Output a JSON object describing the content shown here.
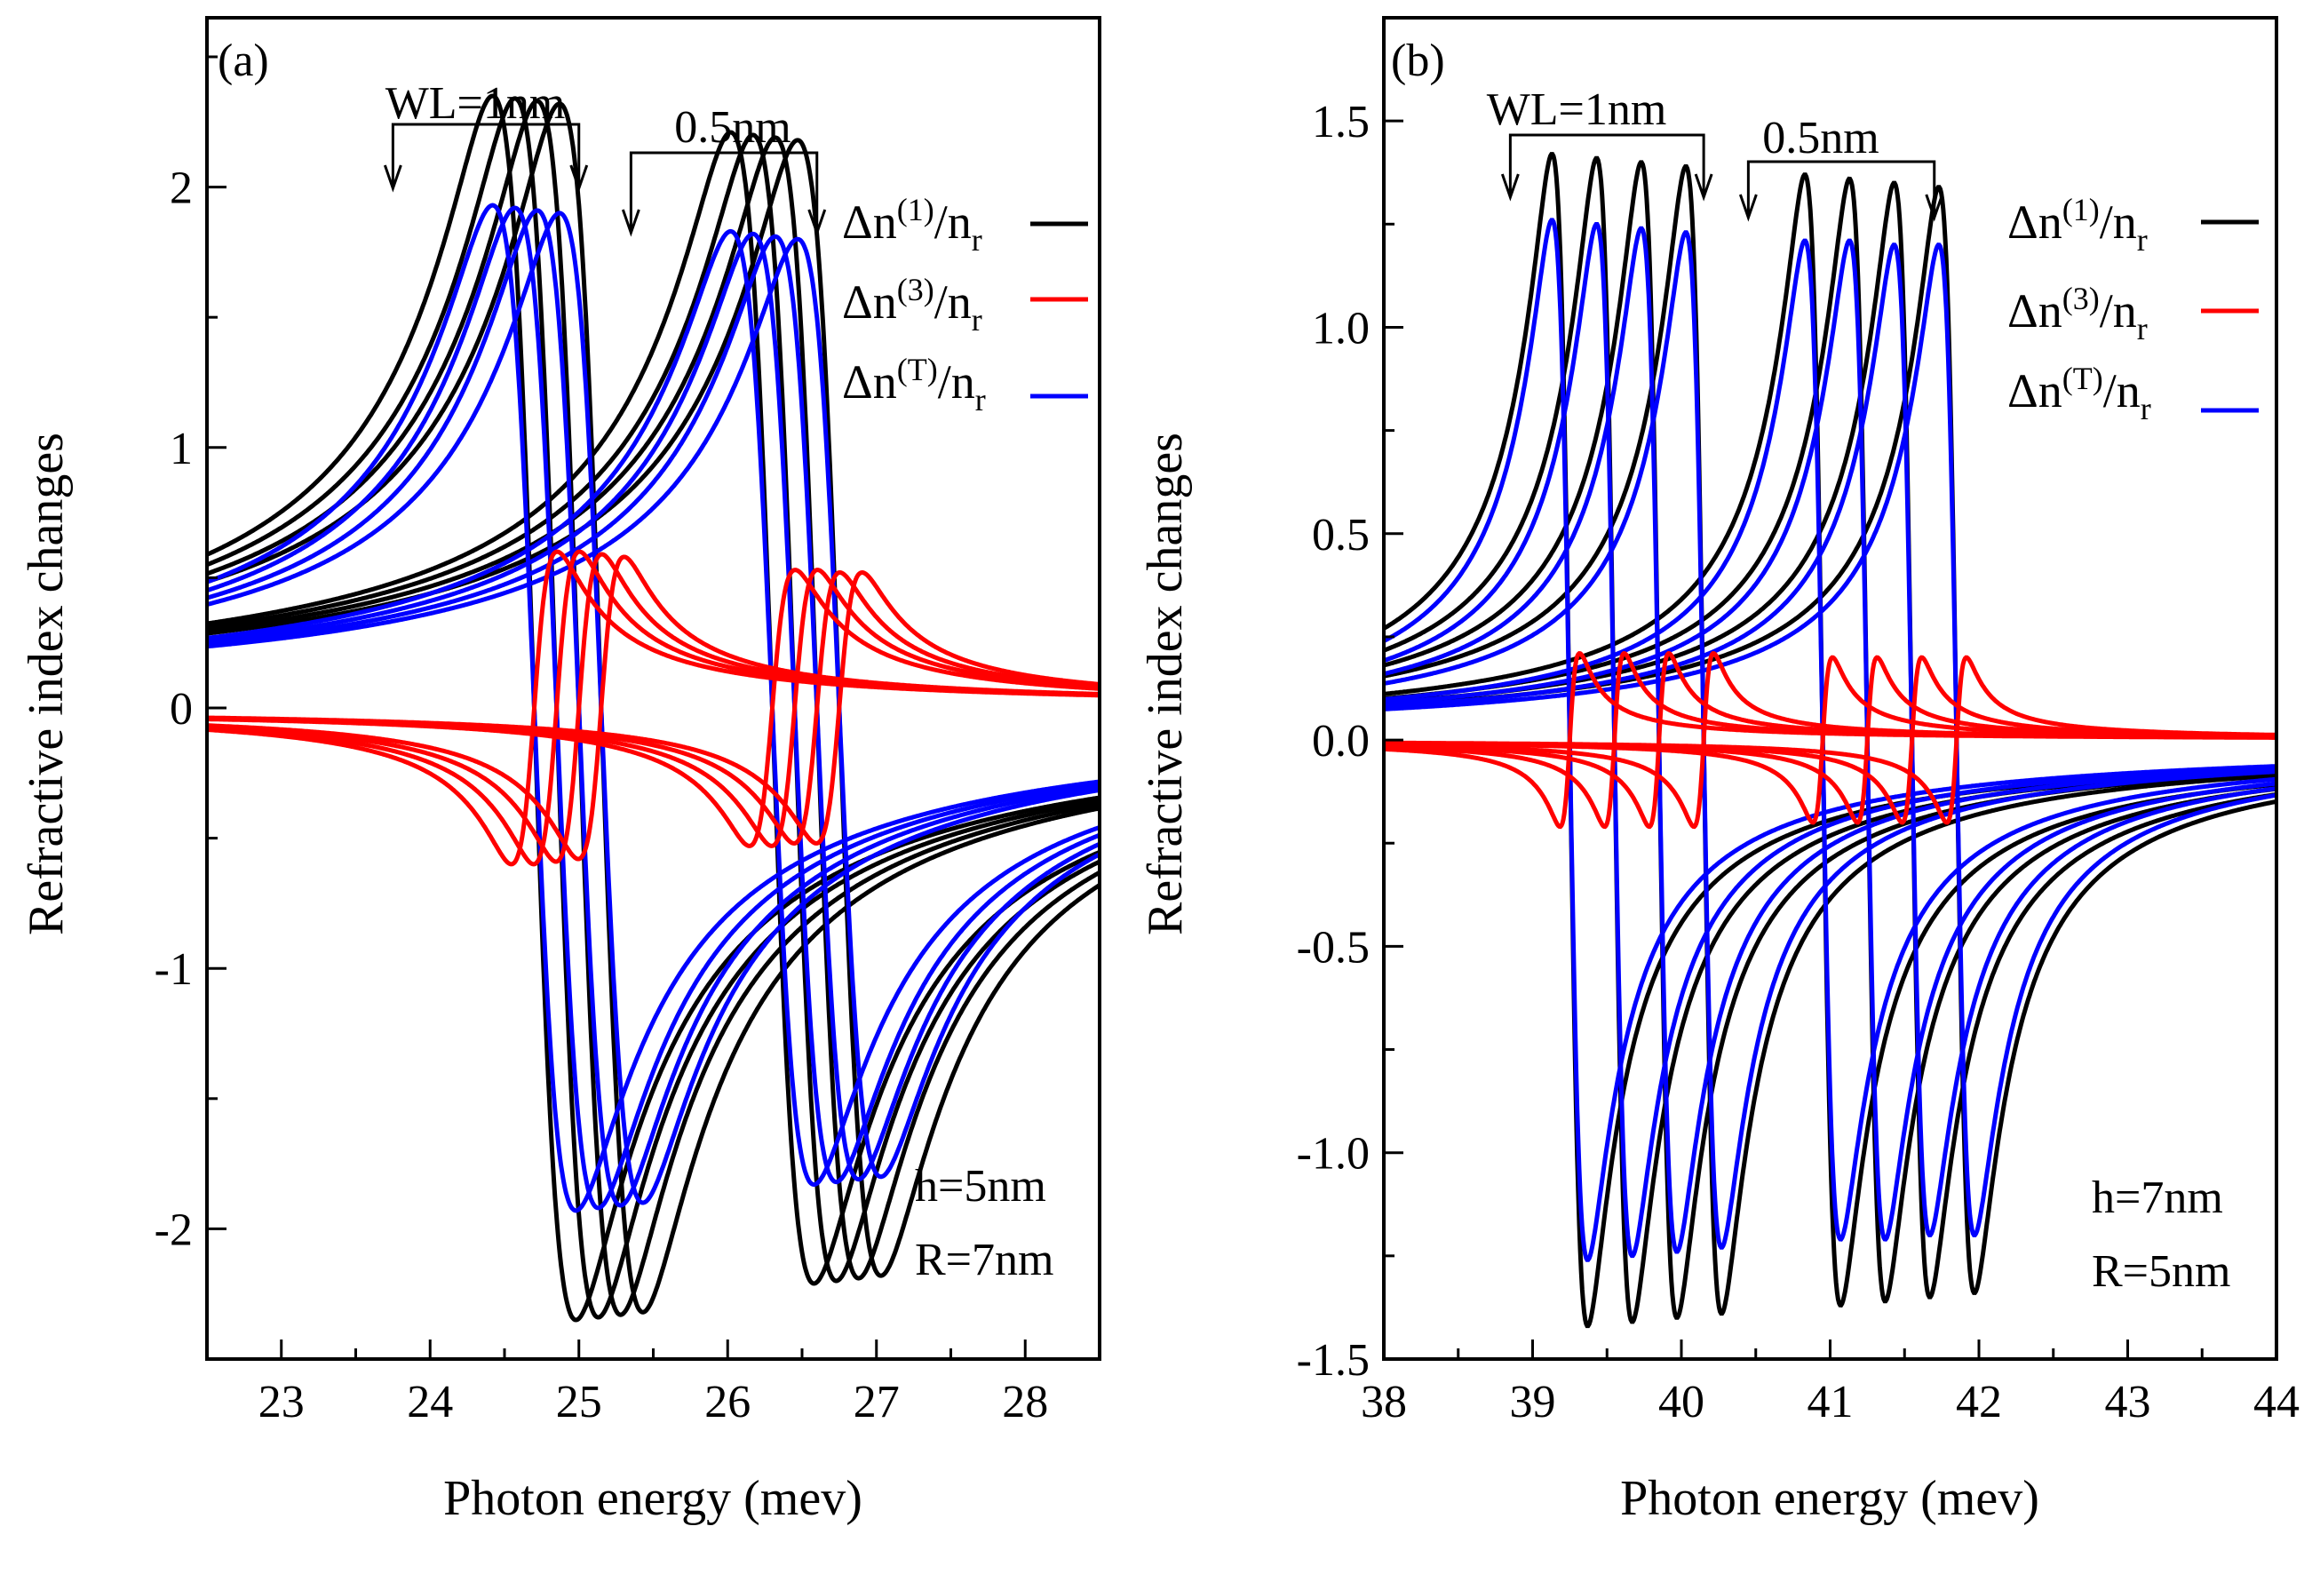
{
  "chart_data": [
    {
      "type": "line",
      "panel_label": "(a)",
      "xlabel": "Photon energy (mev)",
      "ylabel": "Refractive index changes",
      "xlim": [
        22.5,
        28.5
      ],
      "ylim": [
        -2.5,
        2.65
      ],
      "xticks": [
        23,
        24,
        25,
        26,
        27,
        28
      ],
      "yticks": [
        -2,
        -1,
        0,
        1,
        2
      ],
      "ytick_labels": [
        "-2",
        "-1",
        "0",
        "1",
        "2"
      ],
      "annotations": {
        "group1": "WL=1nm",
        "group2": "0.5nm",
        "params": [
          "h=5nm",
          "R=7nm"
        ]
      },
      "group1_arrow_range": [
        23.75,
        25.0
      ],
      "group2_arrow_range": [
        25.35,
        26.6
      ],
      "legend": {
        "position": "top-right",
        "entries": [
          {
            "base": "Δn",
            "sup": "(1)",
            "den": "/n",
            "sub": "r",
            "color": "#000000"
          },
          {
            "base": "Δn",
            "sup": "(3)",
            "den": "/n",
            "sub": "r",
            "color": "#ff0000"
          },
          {
            "base": "Δn",
            "sup": "(T)",
            "den": "/n",
            "sub": "r",
            "color": "#0000ff"
          }
        ]
      },
      "series": [
        {
          "name": "Δn(1)/nr",
          "color": "#000000",
          "resonances": [
            24.7,
            24.85,
            25.0,
            25.15,
            26.3,
            26.45,
            26.6,
            26.75
          ],
          "amplitudes": [
            2.35,
            2.34,
            2.33,
            2.32,
            2.21,
            2.2,
            2.19,
            2.18
          ]
        },
        {
          "name": "Δn(3)/nr",
          "color": "#ff0000",
          "resonances": [
            24.7,
            24.85,
            25.0,
            25.15,
            26.3,
            26.45,
            26.6,
            26.75
          ],
          "amplitudes": [
            -0.6,
            -0.6,
            -0.59,
            -0.58,
            -0.53,
            -0.53,
            -0.52,
            -0.52
          ]
        },
        {
          "name": "Δn(T)/nr",
          "color": "#0000ff",
          "resonances": [
            24.7,
            24.85,
            25.0,
            25.15,
            26.3,
            26.45,
            26.6,
            26.75
          ],
          "amplitudes": [
            1.93,
            1.92,
            1.91,
            1.9,
            1.83,
            1.82,
            1.81,
            1.8
          ]
        }
      ]
    },
    {
      "type": "line",
      "panel_label": "(b)",
      "xlabel": "Photon energy (mev)",
      "ylabel": "Refractive index changes",
      "xlim": [
        38,
        44
      ],
      "ylim": [
        -1.5,
        1.75
      ],
      "xticks": [
        38,
        39,
        40,
        41,
        42,
        43,
        44
      ],
      "yticks": [
        -1.5,
        -1.0,
        -0.5,
        0.0,
        0.5,
        1.0,
        1.5
      ],
      "ytick_labels": [
        "-1.5",
        "-1.0",
        "-0.5",
        "0.0",
        "0.5",
        "1.0",
        "1.5"
      ],
      "annotations": {
        "group1": "WL=1nm",
        "group2": "0.5nm",
        "params": [
          "h=7nm",
          "R=5nm"
        ]
      },
      "group1_arrow_range": [
        38.85,
        40.15
      ],
      "group2_arrow_range": [
        40.45,
        41.7
      ],
      "legend": {
        "position": "top-right",
        "entries": [
          {
            "base": "Δn",
            "sup": "(1)",
            "den": "/n",
            "sub": "r",
            "color": "#000000"
          },
          {
            "base": "Δn",
            "sup": "(3)",
            "den": "/n",
            "sub": "r",
            "color": "#ff0000"
          },
          {
            "base": "Δn",
            "sup": "(T)",
            "den": "/n",
            "sub": "r",
            "color": "#0000ff"
          }
        ]
      },
      "series": [
        {
          "name": "Δn(1)/nr",
          "color": "#000000",
          "resonances": [
            39.25,
            39.55,
            39.85,
            40.15,
            40.95,
            41.25,
            41.55,
            41.85
          ],
          "amplitudes": [
            1.42,
            1.41,
            1.4,
            1.39,
            1.37,
            1.36,
            1.35,
            1.34
          ]
        },
        {
          "name": "Δn(3)/nr",
          "color": "#ff0000",
          "resonances": [
            39.25,
            39.55,
            39.85,
            40.15,
            40.95,
            41.25,
            41.55,
            41.85
          ],
          "amplitudes": [
            -0.21,
            -0.21,
            -0.21,
            -0.21,
            -0.2,
            -0.2,
            -0.2,
            -0.2
          ]
        },
        {
          "name": "Δn(T)/nr",
          "color": "#0000ff",
          "resonances": [
            39.25,
            39.55,
            39.85,
            40.15,
            40.95,
            41.25,
            41.55,
            41.85
          ],
          "amplitudes": [
            1.26,
            1.25,
            1.24,
            1.23,
            1.21,
            1.21,
            1.2,
            1.2
          ]
        }
      ]
    }
  ]
}
